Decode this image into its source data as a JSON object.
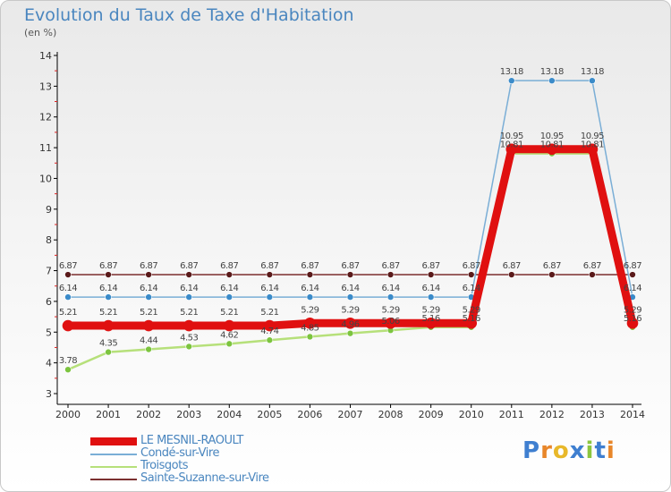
{
  "title": "Evolution du Taux de Taxe d'Habitation",
  "subtitle": "(en %)",
  "logo": {
    "text": "Proxiti",
    "letter_colors": [
      "#3f7fd0",
      "#e8862a",
      "#e8b82a",
      "#3f7fd0",
      "#8cc63f",
      "#3f7fd0",
      "#e8862a"
    ]
  },
  "chart_data": {
    "type": "line",
    "title": "Evolution du Taux de Taxe d'Habitation",
    "ylabel": "(en %)",
    "xlabel": "",
    "x": [
      "2000",
      "2001",
      "2002",
      "2003",
      "2004",
      "2005",
      "2006",
      "2007",
      "2008",
      "2009",
      "2010",
      "2011",
      "2012",
      "2013",
      "2014"
    ],
    "ylim": [
      3,
      14
    ],
    "yticks": [
      "3",
      "4",
      "5",
      "6",
      "7",
      "8",
      "9",
      "10",
      "11",
      "12",
      "13",
      "14"
    ],
    "grid": false,
    "legend_position": "bottom-left",
    "series": [
      {
        "name": "Sainte-Suzanne-sur-Vire",
        "color": "#7b2f2f",
        "marker": "#5a1a1a",
        "values": [
          6.87,
          6.87,
          6.87,
          6.87,
          6.87,
          6.87,
          6.87,
          6.87,
          6.87,
          6.87,
          6.87,
          6.87,
          6.87,
          6.87,
          6.87
        ],
        "labels": [
          "6.87",
          "6.87",
          "6.87",
          "6.87",
          "6.87",
          "6.87",
          "6.87",
          "6.87",
          "6.87",
          "6.87",
          "6.87",
          "6.87",
          "6.87",
          "6.87",
          "6.87"
        ]
      },
      {
        "name": "Condé-sur-Vire",
        "color": "#7aaed6",
        "marker": "#3b8bc9",
        "values": [
          6.14,
          6.14,
          6.14,
          6.14,
          6.14,
          6.14,
          6.14,
          6.14,
          6.14,
          6.14,
          6.14,
          13.18,
          13.18,
          13.18,
          6.14
        ],
        "labels": [
          "6.14",
          "6.14",
          "6.14",
          "6.14",
          "6.14",
          "6.14",
          "6.14",
          "6.14",
          "6.14",
          "6.14",
          "6.14",
          "13.18",
          "13.18",
          "13.18",
          "6.14"
        ]
      },
      {
        "name": "LE MESNIL-RAOULT",
        "color": "#e01010",
        "marker": "#e01010",
        "values": [
          5.21,
          5.21,
          5.21,
          5.21,
          5.21,
          5.21,
          5.29,
          5.29,
          5.29,
          5.29,
          5.29,
          10.95,
          10.95,
          10.95,
          5.29
        ],
        "labels": [
          "5.21",
          "5.21",
          "5.21",
          "5.21",
          "5.21",
          "5.21",
          "5.29",
          "5.29",
          "5.29",
          "5.29",
          "5.29",
          "10.95",
          "10.95",
          "10.95",
          "5.29"
        ]
      },
      {
        "name": "Troisgots",
        "color": "#b6e07a",
        "marker": "#7cc43f",
        "values": [
          3.78,
          4.35,
          4.44,
          4.53,
          4.62,
          4.74,
          4.85,
          4.96,
          5.06,
          5.16,
          5.16,
          10.81,
          10.81,
          10.81,
          5.16
        ],
        "labels": [
          "3.78",
          "4.35",
          "4.44",
          "4.53",
          "4.62",
          "4.74",
          "4.85",
          "4.96",
          "5.06",
          "5.16",
          "5.16",
          "10.81",
          "10.81",
          "10.81",
          "5.16"
        ]
      }
    ],
    "legend": [
      "LE MESNIL-RAOULT",
      "Condé-sur-Vire",
      "Troisgots",
      "Sainte-Suzanne-sur-Vire"
    ]
  }
}
